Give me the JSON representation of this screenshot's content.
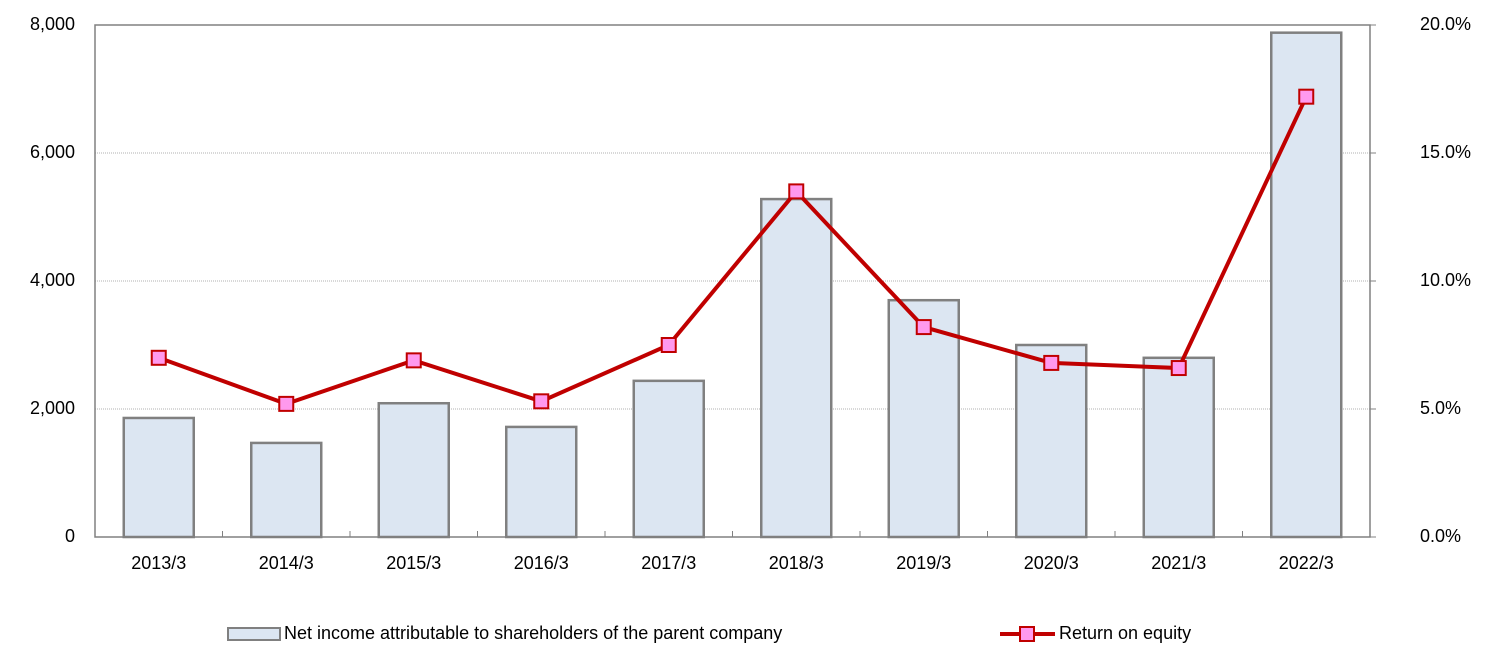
{
  "chart_data": {
    "type": "bar-line",
    "categories": [
      "2013/3",
      "2014/3",
      "2015/3",
      "2016/3",
      "2017/3",
      "2018/3",
      "2019/3",
      "2020/3",
      "2021/3",
      "2022/3"
    ],
    "series": [
      {
        "name": "Net income attributable to shareholders of the parent company",
        "type": "bar",
        "color": "#dce6f2",
        "values": [
          1860,
          1470,
          2090,
          1720,
          2440,
          5280,
          3700,
          3000,
          2800,
          7880
        ]
      },
      {
        "name": "Return on equity",
        "type": "line",
        "axis": "y2",
        "color": "#c00000",
        "marker_color": "#ff99ee",
        "values": [
          7.0,
          5.2,
          6.9,
          5.3,
          7.5,
          13.5,
          8.2,
          6.8,
          6.6,
          17.2
        ]
      }
    ],
    "ylim": [
      0,
      8000
    ],
    "yticks": [
      0,
      {
        "value": 2000,
        "label": "2,000"
      },
      {
        "value": 4000,
        "label": "4,000"
      },
      {
        "value": 6000,
        "label": "6,000"
      },
      {
        "value": 8000,
        "label": "8,000"
      }
    ],
    "y2lim": [
      0,
      20
    ],
    "y2ticks": [
      {
        "value": 0,
        "label": "0.0%"
      },
      {
        "value": 5,
        "label": "5.0%"
      },
      {
        "value": 10,
        "label": "10.0%"
      },
      {
        "value": 15,
        "label": "15.0%"
      },
      {
        "value": 20,
        "label": "20.0%"
      }
    ],
    "grid": true,
    "legend": "bottom"
  }
}
